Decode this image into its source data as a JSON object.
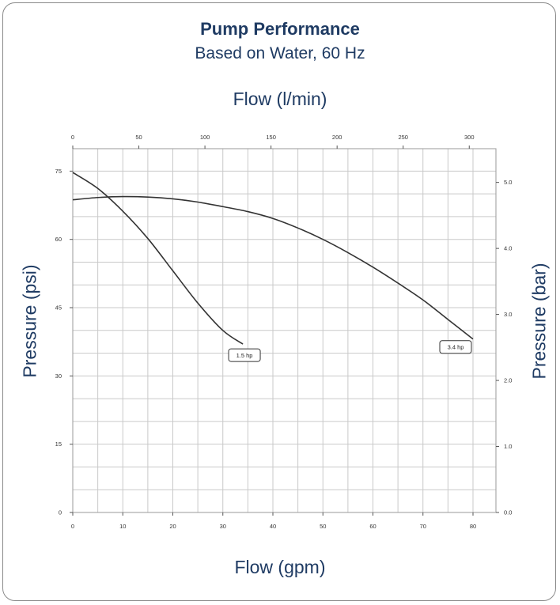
{
  "chart_data": {
    "type": "line",
    "title": "Pump Performance",
    "subtitle": "Based on Water, 60 Hz",
    "xlabel": "Flow (gpm)",
    "xlabel_top": "Flow (l/min)",
    "ylabel": "Pressure (psi)",
    "ylabel_right": "Pressure (bar)",
    "xlim": [
      0,
      85
    ],
    "ylim": [
      0,
      78
    ],
    "x_ticks": [
      0,
      10,
      20,
      30,
      40,
      50,
      60,
      70,
      80
    ],
    "x_top_ticks": [
      0,
      50,
      100,
      150,
      200,
      250,
      300
    ],
    "y_ticks": [
      0,
      15,
      30,
      45,
      60,
      75
    ],
    "y_right_ticks": [
      "0.0",
      "1.0",
      "2.0",
      "3.0",
      "4.0",
      "5.0"
    ],
    "grid": true,
    "series": [
      {
        "name": "1.5 hp",
        "x": [
          0,
          5,
          10,
          15,
          20,
          25,
          30,
          34
        ],
        "y": [
          74.7,
          71.2,
          66.2,
          60.2,
          53.1,
          46.0,
          40.0,
          37.0
        ]
      },
      {
        "name": "3.4 hp",
        "x": [
          0,
          5,
          10,
          15,
          20,
          25,
          30,
          35,
          40,
          45,
          50,
          55,
          60,
          65,
          70,
          75,
          80
        ],
        "y": [
          68.7,
          69.2,
          69.4,
          69.3,
          68.9,
          68.2,
          67.2,
          66.1,
          64.6,
          62.5,
          60.0,
          57.1,
          53.9,
          50.4,
          46.7,
          42.4,
          38.1
        ]
      }
    ]
  }
}
